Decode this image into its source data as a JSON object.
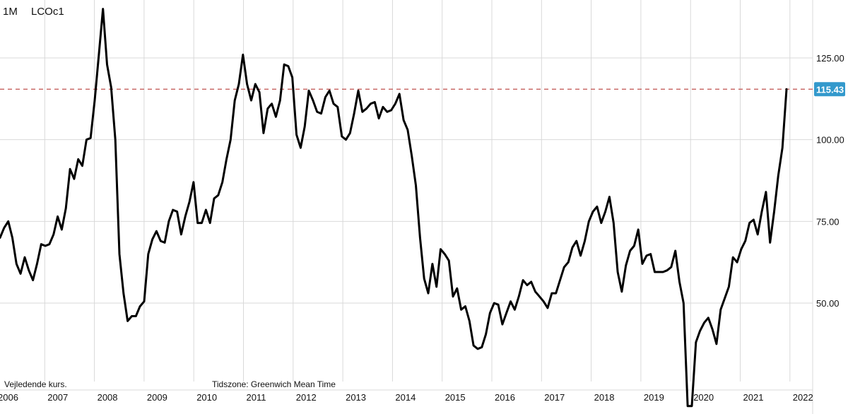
{
  "header": {
    "interval": "1M",
    "symbol": "LCOc1"
  },
  "footer": {
    "note": "Vejledende kurs.",
    "timezone": "Tidszone: Greenwich Mean Time"
  },
  "colors": {
    "line": "#000000",
    "grid": "#d9d9d9",
    "ref_line": "#c0504d",
    "badge": "#3399cc",
    "badge_text": "#ffffff"
  },
  "chart_data": {
    "type": "line",
    "x_ticks": [
      "2006",
      "2007",
      "2008",
      "2009",
      "2010",
      "2011",
      "2012",
      "2013",
      "2014",
      "2015",
      "2016",
      "2017",
      "2018",
      "2019",
      "2020",
      "2021",
      "2022"
    ],
    "y_ticks": [
      "50.00",
      "75.00",
      "100.00",
      "125.00"
    ],
    "ylim": [
      20,
      145
    ],
    "last_value": 115.43,
    "last_value_label": "115.43",
    "reference_line": 115.43,
    "grid": true,
    "x_start_year": 2006,
    "values": [
      70,
      73,
      75,
      70,
      62,
      59,
      64,
      60,
      57,
      62,
      68,
      67.5,
      68,
      71,
      76.5,
      72.5,
      79,
      91,
      88,
      94,
      92,
      100,
      100.5,
      112,
      126,
      140,
      123,
      116,
      100,
      65,
      53,
      44.5,
      46,
      46,
      49,
      50.5,
      65,
      69.5,
      72,
      69,
      68.5,
      75,
      78.5,
      78,
      71,
      76.5,
      81,
      87,
      74.5,
      74.5,
      78.5,
      74.5,
      82,
      83,
      87,
      94,
      100,
      112,
      117,
      126,
      117,
      112,
      117,
      114.5,
      102,
      109.5,
      111,
      107,
      112,
      123,
      122.5,
      119,
      101.5,
      97.5,
      104,
      115,
      112,
      108.5,
      108,
      113,
      115,
      111,
      110,
      101,
      100,
      102,
      108,
      115,
      108.5,
      109.5,
      111,
      111.5,
      106.5,
      110,
      108.5,
      109,
      111,
      114,
      106,
      103,
      95,
      86,
      70,
      57.5,
      53,
      62,
      55,
      66.5,
      65,
      63,
      52,
      54.5,
      48,
      49,
      44.5,
      37,
      36,
      36.5,
      40.5,
      47,
      50,
      49.5,
      43.5,
      47,
      50.5,
      48,
      52,
      57,
      55.5,
      56.5,
      53.5,
      52,
      50.5,
      48.5,
      53,
      53,
      57,
      61,
      62.5,
      67,
      69,
      64.5,
      69,
      75,
      78,
      79.5,
      74.5,
      78,
      82.5,
      74.5,
      59.5,
      53.5,
      61.5,
      66,
      67.5,
      72.5,
      62,
      64.5,
      65,
      59.5,
      59.5,
      59.5,
      60,
      61,
      66,
      56.5,
      50,
      18.5,
      18.5,
      38,
      41.5,
      44,
      45.5,
      42,
      37.5,
      48,
      51.5,
      55,
      64,
      62.5,
      66.5,
      69,
      74.5,
      75.5,
      71,
      78,
      84,
      68.5,
      78,
      89,
      97.5,
      115.43
    ]
  }
}
